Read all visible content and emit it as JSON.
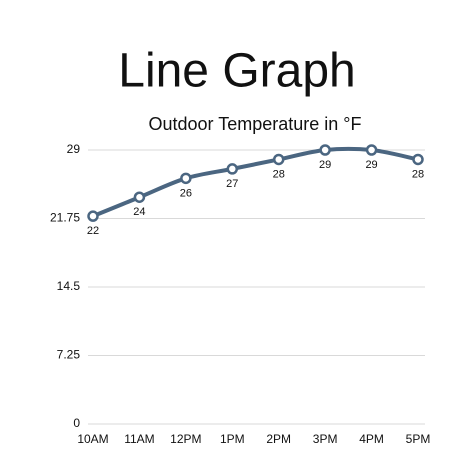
{
  "chart_data": {
    "type": "line",
    "title": "Line Graph",
    "subtitle": "Outdoor Temperature in °F",
    "categories": [
      "10AM",
      "11AM",
      "12PM",
      "1PM",
      "2PM",
      "3PM",
      "4PM",
      "5PM"
    ],
    "values": [
      22,
      24,
      26,
      27,
      28,
      29,
      29,
      28
    ],
    "color": "#4b6681",
    "ylim": [
      0,
      29
    ],
    "yticks": [
      0,
      7.25,
      14.5,
      21.75,
      29
    ],
    "grid": true
  }
}
